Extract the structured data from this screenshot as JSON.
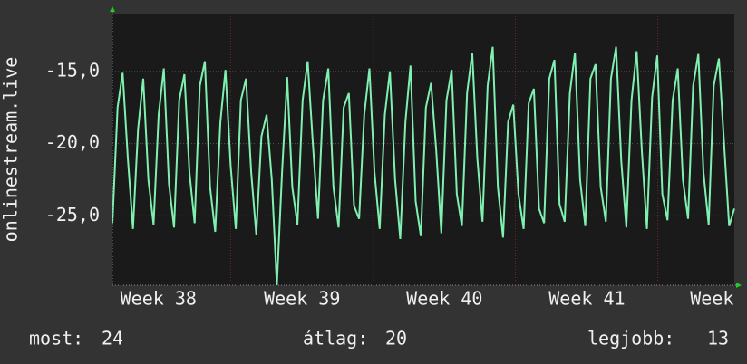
{
  "chart_data": {
    "type": "line",
    "y_label": "onlinestream.live",
    "x_labels": [
      "Week 38",
      "Week 39",
      "Week 40",
      "Week 41",
      "Week"
    ],
    "color": "#80f0b0",
    "ylim": [
      -29.8,
      -11
    ],
    "yticks": [
      {
        "value": -15,
        "label": "-15,0"
      },
      {
        "value": -20,
        "label": "-20,0"
      },
      {
        "value": -25,
        "label": "-25,0"
      }
    ],
    "grid": true,
    "values": [
      -25.5,
      -17.5,
      -15.1,
      -21,
      -25.9,
      -19,
      -15.5,
      -22.5,
      -25.6,
      -18,
      -14.8,
      -22.8,
      -25.8,
      -17,
      -15.2,
      -22,
      -25.5,
      -16,
      -14.3,
      -23,
      -26.1,
      -18.5,
      -14.9,
      -21.5,
      -25.9,
      -17,
      -15.5,
      -22,
      -26.3,
      -19.5,
      -18,
      -22.5,
      -29.8,
      -22,
      -15.4,
      -23,
      -25.6,
      -17,
      -14.3,
      -20,
      -25.2,
      -17,
      -14.8,
      -23,
      -25.8,
      -17.5,
      -16.5,
      -24.3,
      -25.2,
      -18,
      -14.8,
      -22,
      -25.9,
      -18,
      -15,
      -22.5,
      -26.6,
      -18.5,
      -14.6,
      -24,
      -26.4,
      -17.5,
      -15.8,
      -20.5,
      -26.2,
      -17,
      -14.9,
      -23.5,
      -25.7,
      -16.5,
      -13.7,
      -21,
      -25.4,
      -16,
      -13.3,
      -23,
      -26.5,
      -18.5,
      -17.3,
      -23.5,
      -25.9,
      -17.2,
      -16.2,
      -24.5,
      -25.5,
      -15.5,
      -14.2,
      -24.2,
      -25.4,
      -16.5,
      -13.7,
      -22.5,
      -25.7,
      -15.5,
      -14.5,
      -23,
      -25.4,
      -15.5,
      -13.3,
      -21.2,
      -25.8,
      -17,
      -13.6,
      -20.5,
      -25.9,
      -16.8,
      -13.9,
      -23.5,
      -25.3,
      -17,
      -14.8,
      -22.5,
      -25.2,
      -16,
      -13.8,
      -22,
      -25.6,
      -16,
      -14.1,
      -20,
      -25.7,
      -24.5
    ],
    "stats": [
      {
        "label": "most:",
        "value": 24
      },
      {
        "label": "átlag:",
        "value": 20
      },
      {
        "label": "legjobb:",
        "value": 13
      }
    ]
  }
}
